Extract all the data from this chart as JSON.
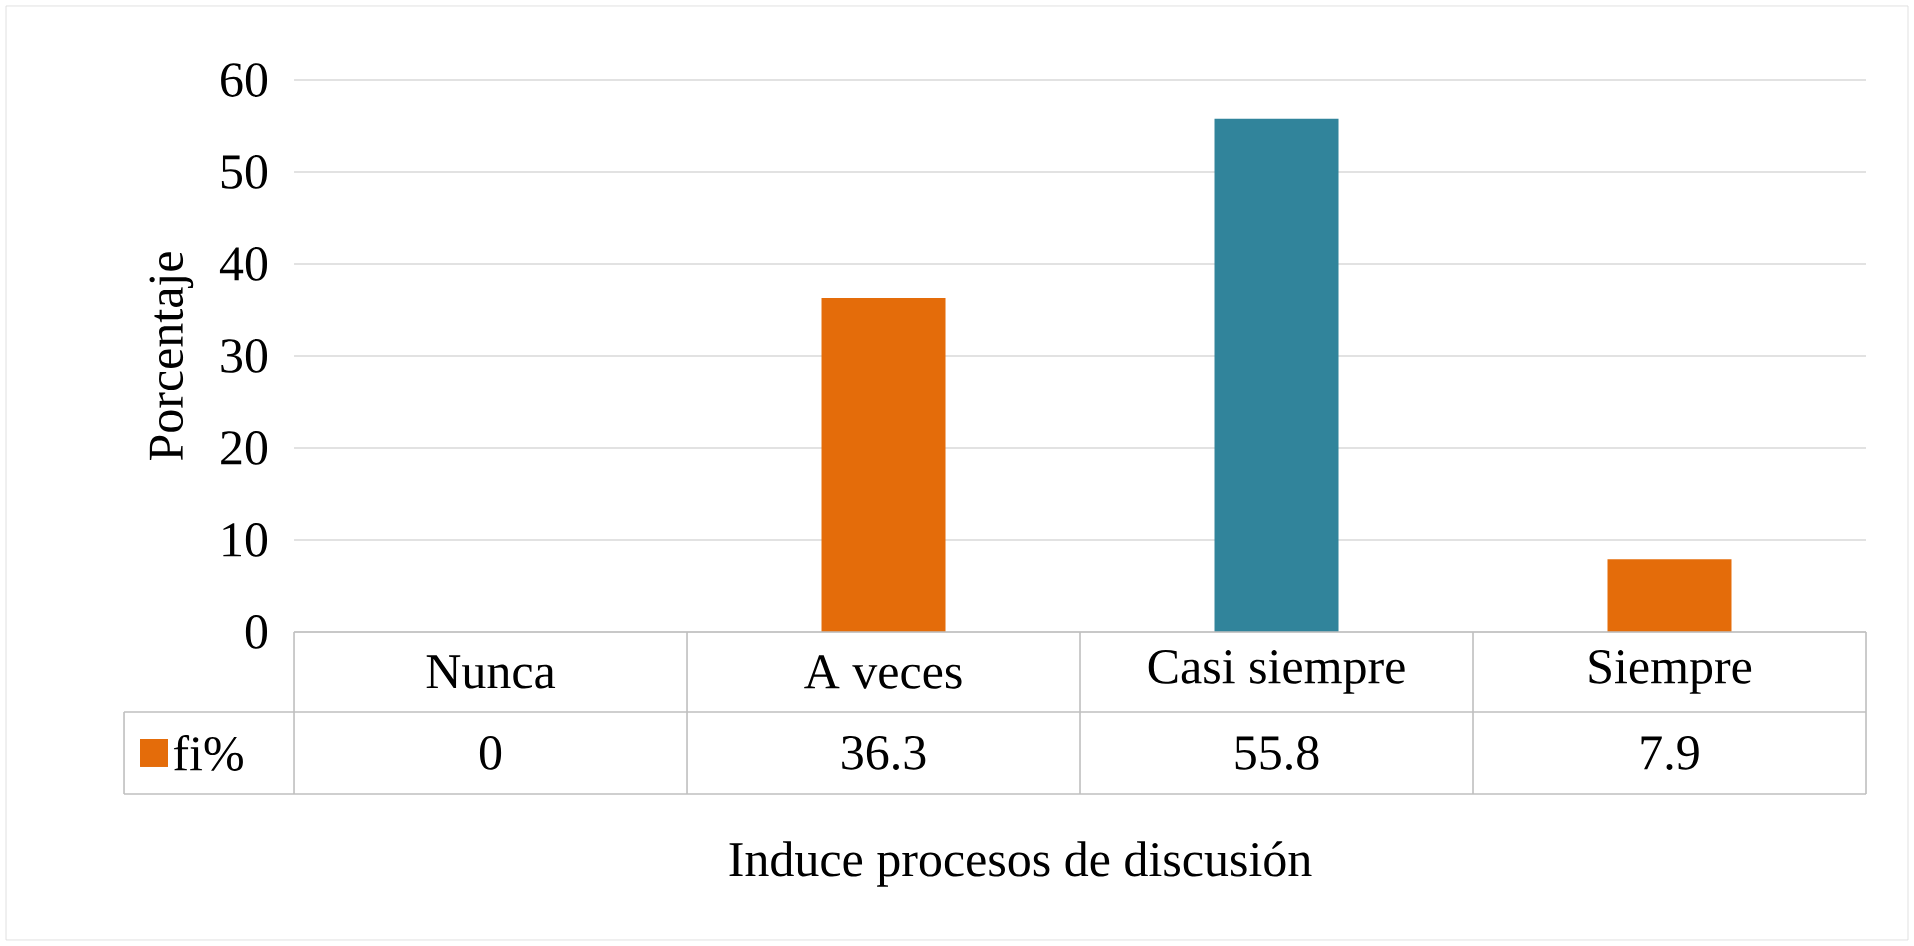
{
  "chart_data": {
    "type": "bar",
    "xlabel": "Induce procesos de discusión",
    "ylabel": "Porcentaje",
    "categories": [
      "Nunca",
      "A veces",
      "Casi siempre",
      "Siempre"
    ],
    "series": [
      {
        "name": "fi%",
        "color": "#e46c0a",
        "colors": [
          "#e46c0a",
          "#e46c0a",
          "#31849b",
          "#e46c0a"
        ],
        "values": [
          0,
          36.3,
          55.8,
          7.9
        ]
      }
    ],
    "ylim": [
      0,
      60
    ],
    "yticks": [
      0,
      10,
      20,
      30,
      40,
      50,
      60
    ],
    "grid": "y",
    "legend": "bottom",
    "data_labels": true
  }
}
